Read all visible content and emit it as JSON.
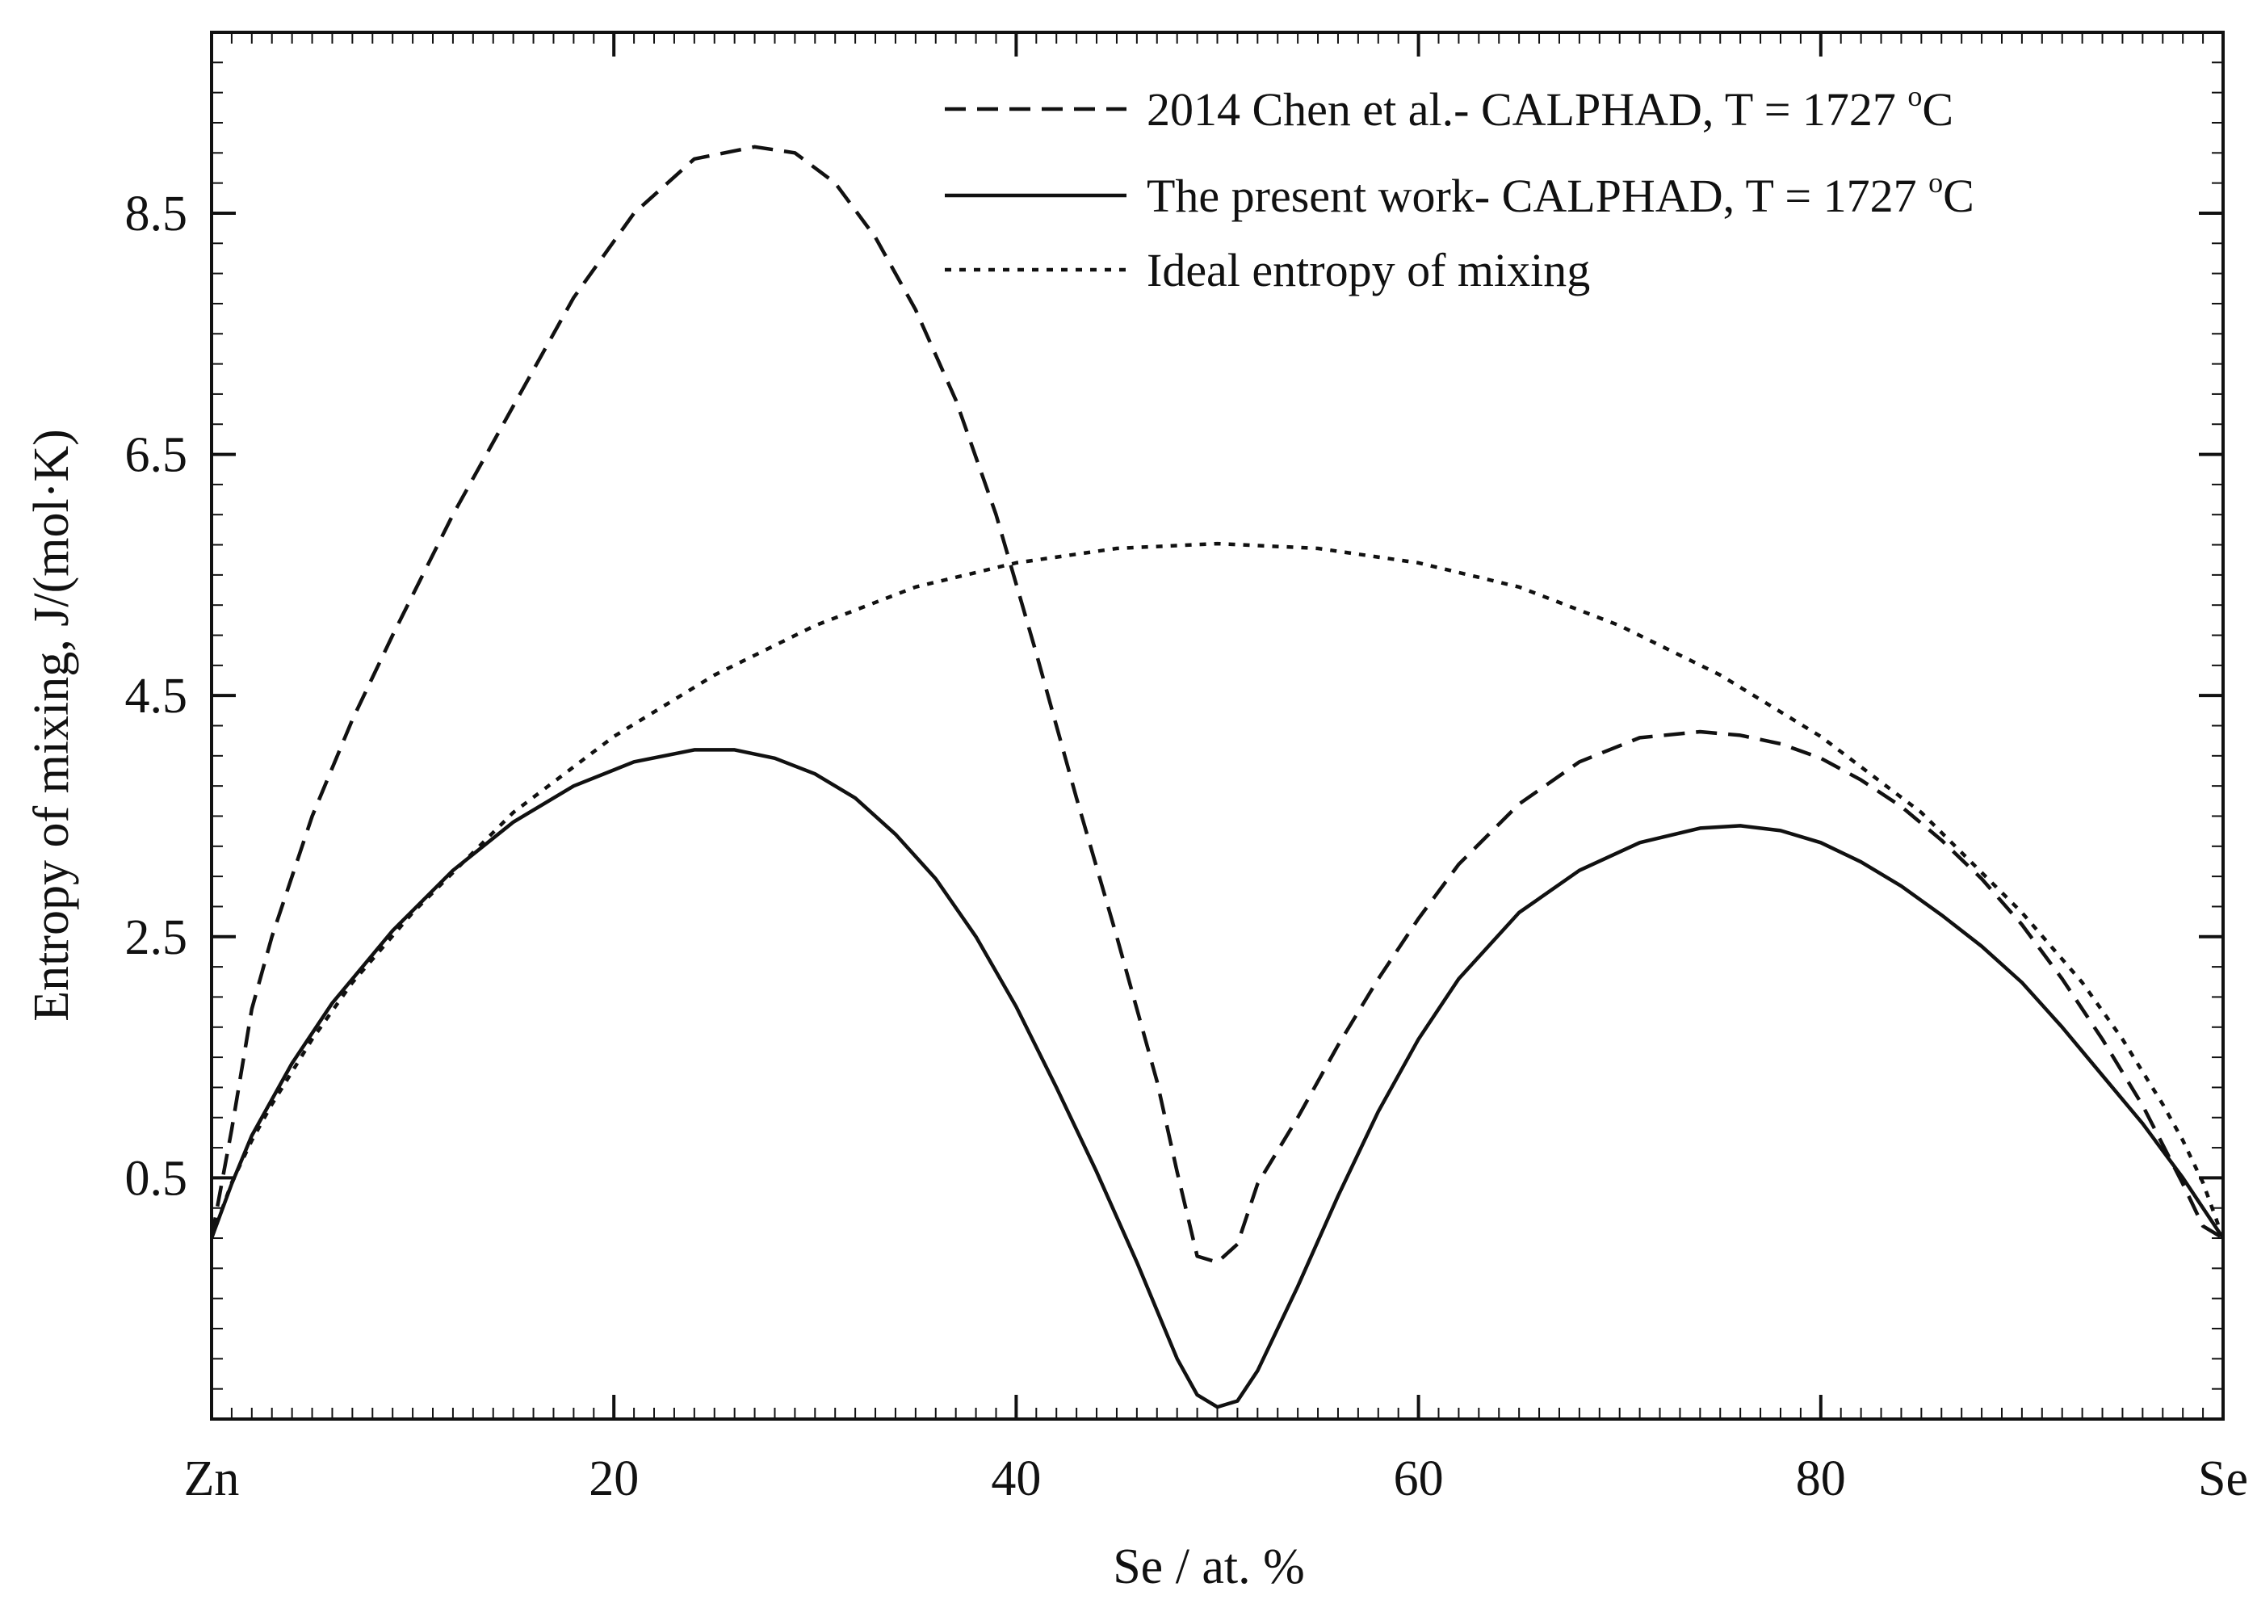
{
  "chart_data": {
    "type": "line",
    "title": "",
    "xlabel": "Se / at. %",
    "ylabel": "Entropy of mixing, J/(mol·K)",
    "xlim": [
      0,
      100
    ],
    "ylim": [
      -1.5,
      10.0
    ],
    "xticks": [
      {
        "value": 0,
        "label": "Zn"
      },
      {
        "value": 20,
        "label": "20"
      },
      {
        "value": 40,
        "label": "40"
      },
      {
        "value": 60,
        "label": "60"
      },
      {
        "value": 80,
        "label": "80"
      },
      {
        "value": 100,
        "label": "Se"
      }
    ],
    "yticks": [
      {
        "value": 0.5,
        "label": "0.5"
      },
      {
        "value": 2.5,
        "label": "2.5"
      },
      {
        "value": 4.5,
        "label": "4.5"
      },
      {
        "value": 6.5,
        "label": "6.5"
      },
      {
        "value": 8.5,
        "label": "8.5"
      }
    ],
    "legend_position": "top-right",
    "series": [
      {
        "name": "2014 Chen et al.- CALPHAD, T = 1727 ",
        "superscript": "o",
        "unit": "C",
        "style": "dashed",
        "color": "#111111",
        "x": [
          0,
          1,
          2,
          3,
          5,
          7,
          9,
          12,
          15,
          18,
          21,
          24,
          27,
          29,
          31,
          33,
          35,
          37,
          39,
          41,
          43,
          45,
          47,
          48,
          49,
          50,
          51,
          52,
          54,
          56,
          58,
          60,
          62,
          65,
          68,
          71,
          74,
          76,
          78,
          80,
          82,
          84,
          86,
          88,
          90,
          92,
          94,
          96,
          98,
          99,
          100
        ],
        "y": [
          0.0,
          0.9,
          1.9,
          2.5,
          3.5,
          4.3,
          5.0,
          6.0,
          6.9,
          7.8,
          8.5,
          8.95,
          9.05,
          9.0,
          8.75,
          8.3,
          7.7,
          6.95,
          6.0,
          4.85,
          3.65,
          2.5,
          1.3,
          0.55,
          -0.15,
          -0.2,
          -0.05,
          0.45,
          1.0,
          1.6,
          2.15,
          2.65,
          3.1,
          3.6,
          3.95,
          4.15,
          4.2,
          4.17,
          4.1,
          3.98,
          3.8,
          3.58,
          3.3,
          2.98,
          2.6,
          2.15,
          1.65,
          1.1,
          0.45,
          0.1,
          0.0
        ]
      },
      {
        "name": "The present work- CALPHAD, T = 1727 ",
        "superscript": "o",
        "unit": "C",
        "style": "solid",
        "color": "#111111",
        "x": [
          0,
          1,
          2,
          4,
          6,
          9,
          12,
          15,
          18,
          21,
          24,
          26,
          28,
          30,
          32,
          34,
          36,
          38,
          40,
          42,
          44,
          46,
          47,
          48,
          49,
          50,
          51,
          52,
          54,
          56,
          58,
          60,
          62,
          65,
          68,
          71,
          74,
          76,
          78,
          80,
          82,
          84,
          86,
          88,
          90,
          92,
          94,
          96,
          98,
          99,
          100
        ],
        "y": [
          0.0,
          0.45,
          0.85,
          1.45,
          1.95,
          2.55,
          3.05,
          3.45,
          3.75,
          3.95,
          4.05,
          4.05,
          3.98,
          3.85,
          3.65,
          3.35,
          2.98,
          2.5,
          1.92,
          1.25,
          0.55,
          -0.2,
          -0.6,
          -1.0,
          -1.3,
          -1.4,
          -1.35,
          -1.1,
          -0.4,
          0.35,
          1.05,
          1.65,
          2.15,
          2.7,
          3.05,
          3.28,
          3.4,
          3.42,
          3.38,
          3.28,
          3.12,
          2.92,
          2.68,
          2.42,
          2.12,
          1.75,
          1.35,
          0.95,
          0.5,
          0.25,
          0.0
        ]
      },
      {
        "name": "Ideal entropy of mixing",
        "superscript": "",
        "unit": "",
        "style": "dotted",
        "color": "#111111",
        "x": [
          0,
          1,
          2,
          3,
          5,
          7,
          10,
          15,
          20,
          25,
          30,
          35,
          40,
          45,
          50,
          55,
          60,
          65,
          70,
          75,
          80,
          85,
          90,
          93,
          95,
          97,
          98,
          99,
          100
        ],
        "y": [
          0.0,
          0.46,
          0.81,
          1.11,
          1.65,
          2.12,
          2.7,
          3.53,
          4.16,
          4.67,
          5.08,
          5.4,
          5.6,
          5.72,
          5.76,
          5.72,
          5.6,
          5.4,
          5.08,
          4.67,
          4.16,
          3.53,
          2.7,
          2.12,
          1.65,
          1.11,
          0.81,
          0.46,
          0.0
        ]
      }
    ]
  }
}
